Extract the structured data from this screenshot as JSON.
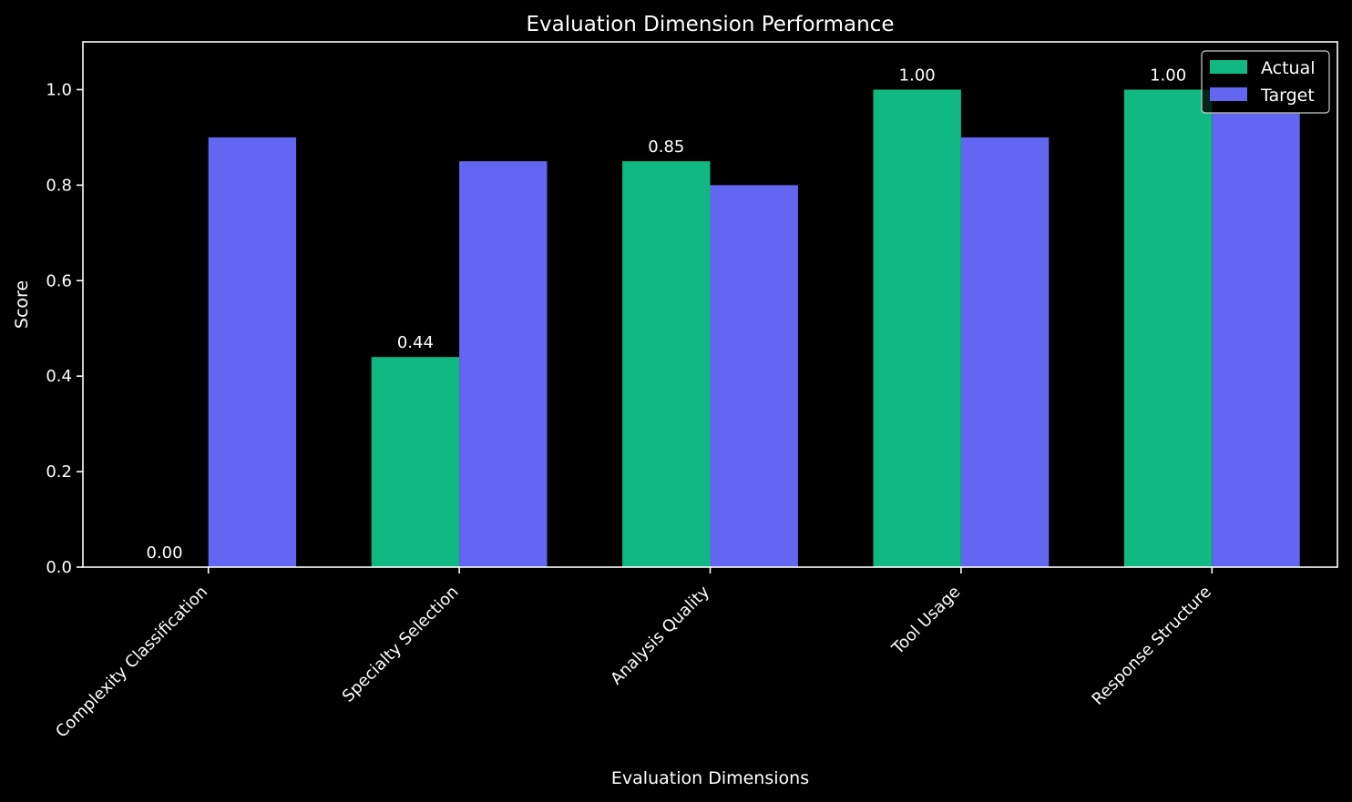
{
  "chart_data": {
    "type": "bar",
    "title": "Evaluation Dimension Performance",
    "xlabel": "Evaluation Dimensions",
    "ylabel": "Score",
    "categories": [
      "Complexity Classification",
      "Specialty Selection",
      "Analysis Quality",
      "Tool Usage",
      "Response Structure"
    ],
    "series": [
      {
        "name": "Actual",
        "color": "#10b981",
        "values": [
          0.0,
          0.44,
          0.85,
          1.0,
          1.0
        ],
        "labels": [
          "0.00",
          "0.44",
          "0.85",
          "1.00",
          "1.00"
        ]
      },
      {
        "name": "Target",
        "color": "#6366f1",
        "values": [
          0.9,
          0.85,
          0.8,
          0.9,
          0.95
        ]
      }
    ],
    "ylim": [
      0,
      1.1
    ],
    "yticks": [
      "0.0",
      "0.2",
      "0.4",
      "0.6",
      "0.8",
      "1.0"
    ],
    "grid": false,
    "legend_position": "top-right",
    "background": "#000000",
    "foreground": "#ffffff"
  }
}
